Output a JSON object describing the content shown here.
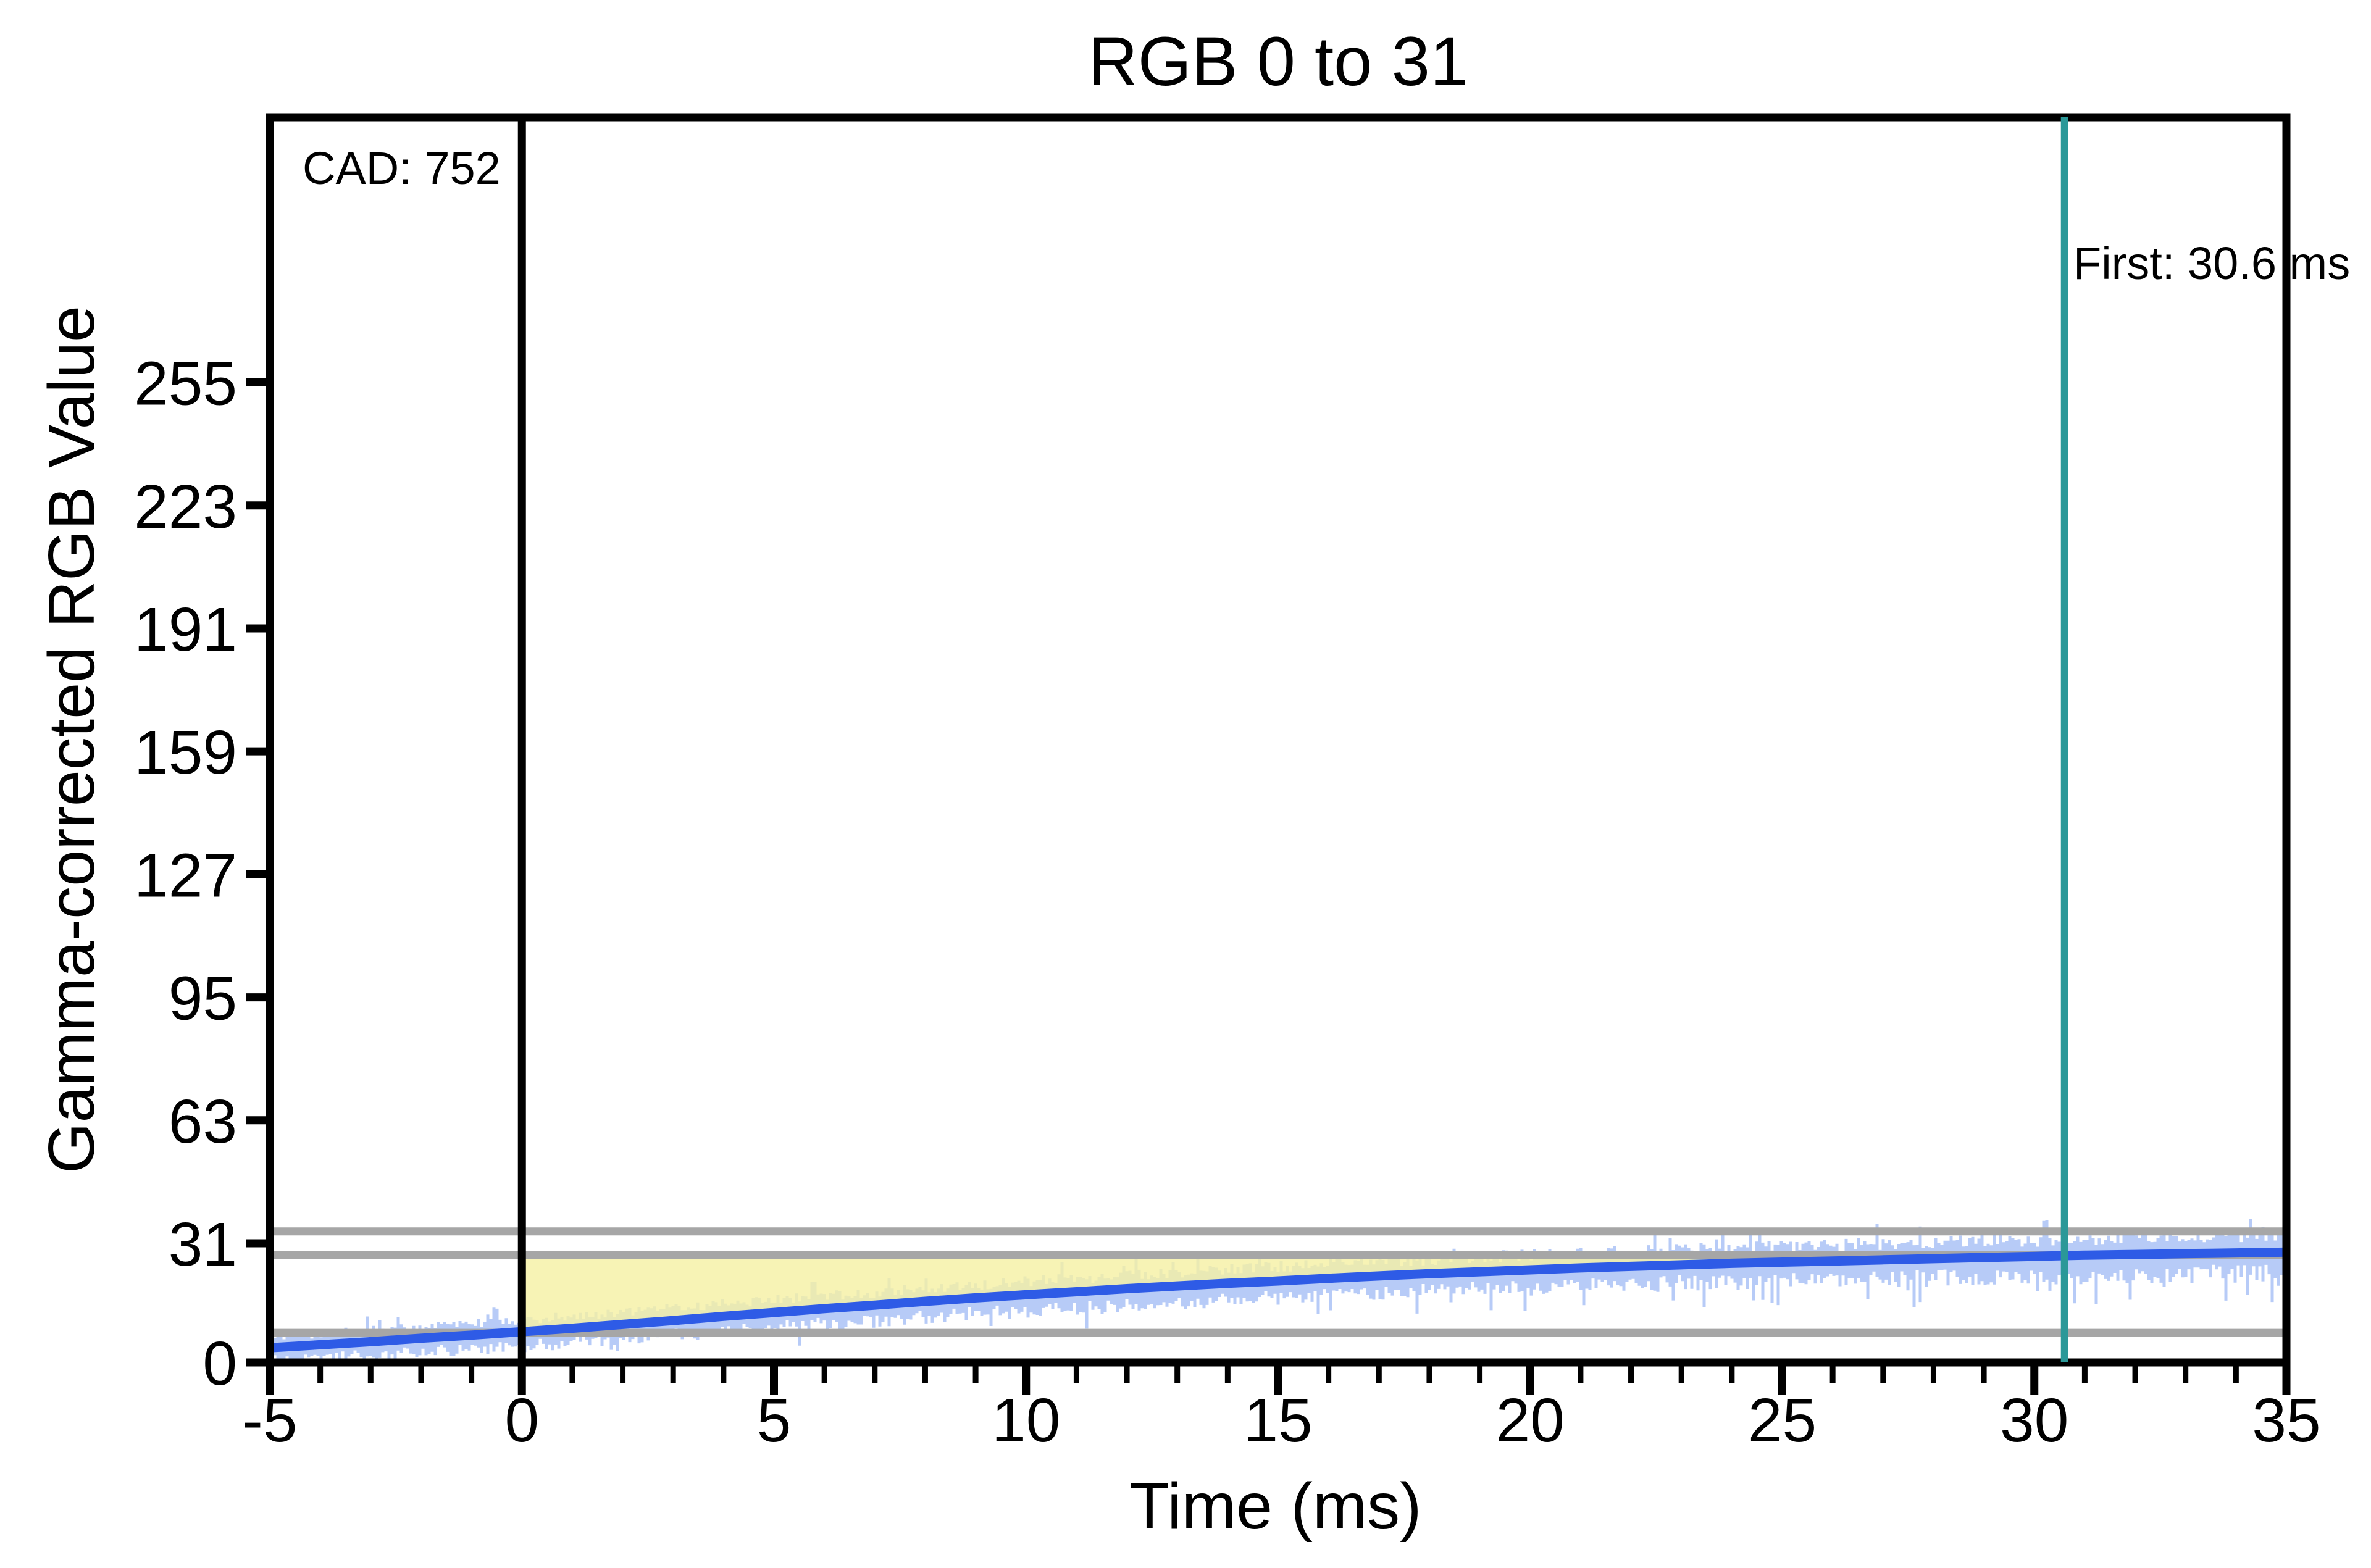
{
  "title": "RGB 0 to 31",
  "annotations": {
    "cad_label": "CAD: 752",
    "first_label": "First: 30.6 ms"
  },
  "colors": {
    "smoothed_curve": "#2E5BE6",
    "raw_noise": "#B7CBF7",
    "cad_fill": "#F5F0A2",
    "tolerance_gray": "#A6A6A6",
    "first_response_teal": "#2B9898",
    "transition_black": "#000000",
    "text": "#000000",
    "background": "#FFFFFF"
  },
  "chart_data": {
    "type": "line",
    "title": "RGB 0 to 31",
    "xlabel": "Time (ms)",
    "ylabel": "Gamma-corrected RGB Value",
    "xlim": [
      -5,
      35
    ],
    "ylim": [
      0,
      324
    ],
    "x_major_ticks": [
      -5,
      0,
      5,
      10,
      15,
      20,
      25,
      30,
      35
    ],
    "x_minor_tick_step": 1,
    "y_ticks": [
      0,
      31,
      63,
      95,
      127,
      159,
      191,
      223,
      255
    ],
    "grid": false,
    "legend": "none",
    "series": [
      {
        "name": "smoothed-response",
        "x": [
          -5,
          -4,
          -3,
          -2,
          -1,
          0,
          1,
          2,
          3,
          4,
          5,
          6,
          7,
          8,
          9,
          10,
          11,
          12,
          13,
          14,
          15,
          16,
          17,
          18,
          19,
          20,
          21,
          22,
          23,
          24,
          25,
          26,
          27,
          28,
          29,
          30,
          31,
          32,
          33,
          34,
          35
        ],
        "y": [
          3.8,
          4.6,
          5.4,
          6.3,
          7.1,
          8.0,
          8.9,
          9.9,
          10.9,
          12.0,
          13.0,
          14.0,
          14.9,
          15.9,
          16.8,
          17.6,
          18.4,
          19.2,
          19.9,
          20.6,
          21.2,
          21.9,
          22.5,
          23.1,
          23.6,
          24.1,
          24.6,
          25.0,
          25.4,
          25.8,
          26.1,
          26.4,
          26.7,
          27.0,
          27.3,
          27.6,
          27.9,
          28.1,
          28.3,
          28.5,
          28.7
        ]
      },
      {
        "name": "raw-sensor-signal",
        "description": "noisy raw luminance band jittering around the smoothed curve, roughly +/-4 RGB with occasional larger downward spikes"
      }
    ],
    "horizontal_guides": [
      {
        "name": "end-tolerance-upper",
        "value": 34.1
      },
      {
        "name": "end-tolerance-lower",
        "value": 27.9
      },
      {
        "name": "start-level",
        "value": 7.7
      }
    ],
    "vertical_guides": [
      {
        "name": "transition-start",
        "x": 0
      },
      {
        "name": "first-response",
        "x": 30.6
      }
    ],
    "shaded_region": {
      "name": "cumulative-absolute-difference-area",
      "from_x": 0,
      "to_x": 24.8,
      "top_value": 27.9,
      "bottom": "smoothed-response"
    }
  }
}
